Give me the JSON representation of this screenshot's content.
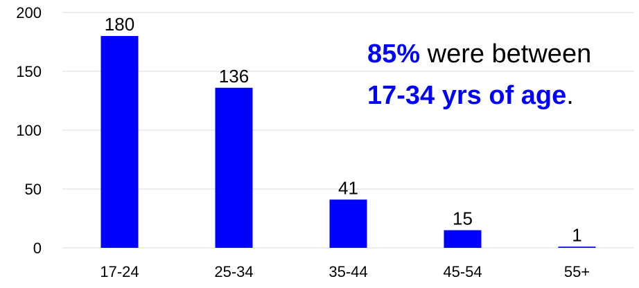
{
  "chart_data": {
    "type": "bar",
    "categories": [
      "17-24",
      "25-34",
      "35-44",
      "45-54",
      "55+"
    ],
    "values": [
      180,
      136,
      41,
      15,
      1
    ],
    "data_labels": [
      "180",
      "136",
      "41",
      "15",
      "1"
    ],
    "ylim": [
      0,
      200
    ],
    "yticks": [
      "0",
      "50",
      "100",
      "150",
      "200"
    ],
    "ytick_values": [
      0,
      50,
      100,
      150,
      200
    ],
    "grid": "horizontal",
    "legend": "none",
    "title": "",
    "xlabel": "",
    "ylabel": "",
    "bar_color": "#0000ff",
    "grid_color": "#d9d9d9",
    "annotation": {
      "line1_highlight": "85%",
      "line1_rest": " were between",
      "line2_highlight": "17-34 yrs of age",
      "line2_rest": ".",
      "highlight_color": "#0000ff"
    }
  }
}
